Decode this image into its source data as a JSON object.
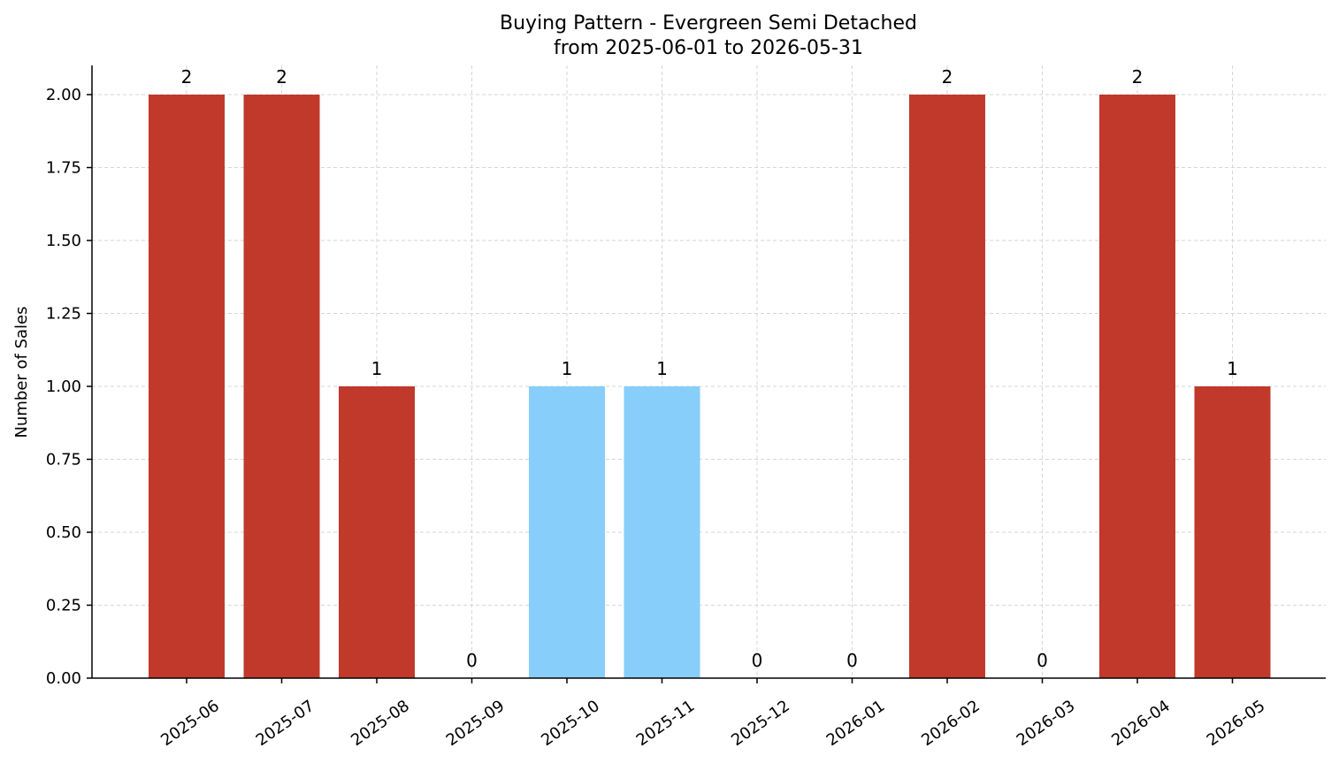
{
  "chart_data": {
    "type": "bar",
    "title": "Buying Pattern - Evergreen Semi Detached",
    "subtitle": "from 2025-06-01 to 2026-05-31",
    "xlabel": "",
    "ylabel": "Number of Sales",
    "categories": [
      "2025-06",
      "2025-07",
      "2025-08",
      "2025-09",
      "2025-10",
      "2025-11",
      "2025-12",
      "2026-01",
      "2026-02",
      "2026-03",
      "2026-04",
      "2026-05"
    ],
    "values": [
      2,
      2,
      1,
      0,
      1,
      1,
      0,
      0,
      2,
      0,
      2,
      1
    ],
    "data_labels": [
      "2",
      "2",
      "1",
      "0",
      "1",
      "1",
      "0",
      "0",
      "2",
      "0",
      "2",
      "1"
    ],
    "bar_colors": [
      "#c0392b",
      "#c0392b",
      "#c0392b",
      "#c0392b",
      "#87cefa",
      "#87cefa",
      "#c0392b",
      "#c0392b",
      "#c0392b",
      "#c0392b",
      "#c0392b",
      "#c0392b"
    ],
    "ylim": [
      0,
      2.1
    ],
    "yticks": [
      0,
      0.25,
      0.5,
      0.75,
      1.0,
      1.25,
      1.5,
      1.75,
      2.0
    ],
    "ytick_labels": [
      "0.00",
      "0.25",
      "0.50",
      "0.75",
      "1.00",
      "1.25",
      "1.50",
      "1.75",
      "2.00"
    ],
    "grid": true,
    "legend": "none"
  }
}
